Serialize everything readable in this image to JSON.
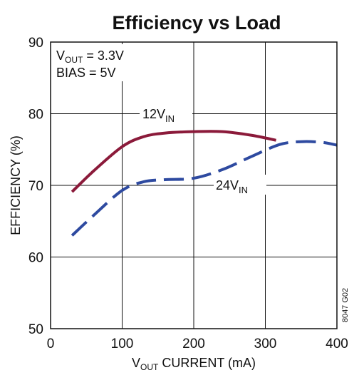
{
  "chart_data": {
    "type": "line",
    "title": "Efficiency vs Load",
    "xlabel": {
      "main": "V",
      "sub": "OUT",
      "rest": " CURRENT (mA)"
    },
    "ylabel": "EFFICIENCY (%)",
    "xlim": [
      0,
      400
    ],
    "ylim": [
      50,
      90
    ],
    "x_ticks": [
      0,
      100,
      200,
      300,
      400
    ],
    "y_ticks": [
      50,
      60,
      70,
      80,
      90
    ],
    "grid": true,
    "conditions": [
      {
        "main": "V",
        "sub": "OUT",
        "rest": " = 3.3V"
      },
      {
        "main": "BIAS = 5V",
        "sub": "",
        "rest": ""
      }
    ],
    "figure_code": "8047 G02",
    "series": [
      {
        "name": {
          "main": "12V",
          "sub": "IN"
        },
        "color": "#8b1a3a",
        "dash": "solid",
        "x": [
          30,
          60,
          100,
          130,
          160,
          200,
          240,
          280,
          315
        ],
        "y": [
          69.1,
          72.0,
          75.4,
          76.8,
          77.3,
          77.5,
          77.5,
          77.0,
          76.3
        ]
      },
      {
        "name": {
          "main": "24V",
          "sub": "IN"
        },
        "color": "#2e4aa0",
        "dash": "dashed",
        "x": [
          30,
          60,
          100,
          130,
          160,
          200,
          240,
          280,
          320,
          350,
          380,
          400
        ],
        "y": [
          63.0,
          65.8,
          69.3,
          70.5,
          70.8,
          71.0,
          72.2,
          74.0,
          75.7,
          76.1,
          76.0,
          75.6
        ]
      }
    ]
  }
}
